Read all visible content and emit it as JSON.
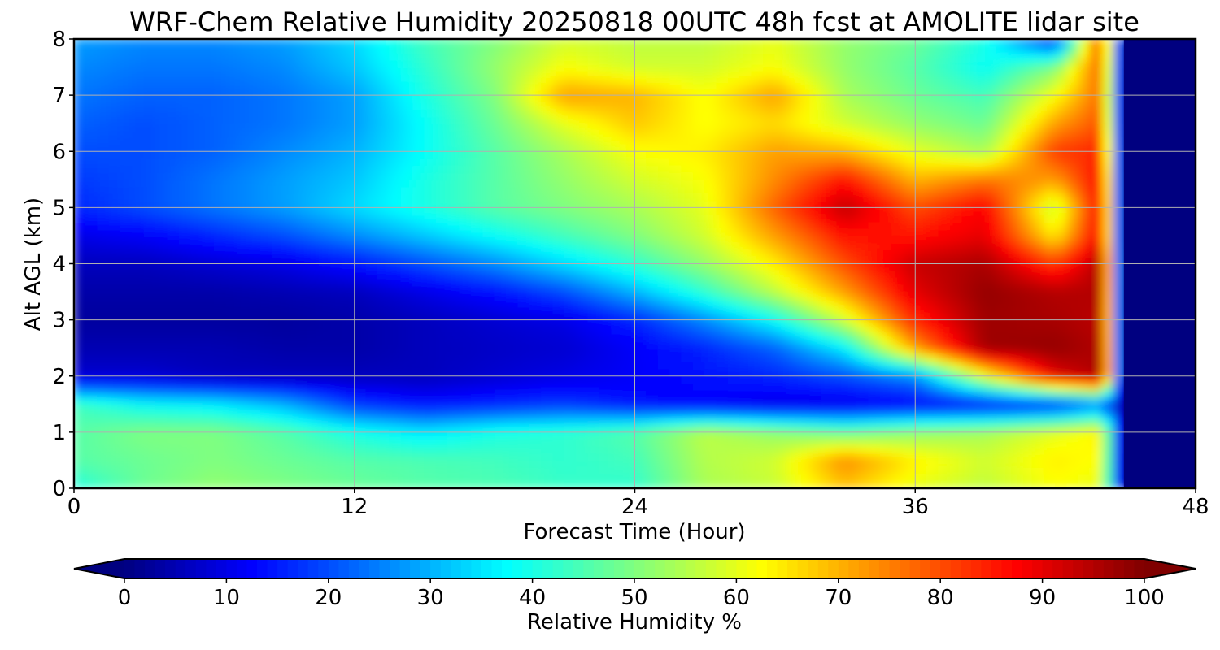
{
  "chart_data": {
    "type": "heatmap",
    "title": "WRF-Chem Relative Humidity 20250818 00UTC 48h fcst at AMOLITE lidar site",
    "xlabel": "Forecast Time (Hour)",
    "ylabel": "Alt AGL (km)",
    "xlim": [
      0,
      48
    ],
    "ylim": [
      0,
      8
    ],
    "xticks": [
      0,
      12,
      24,
      36,
      48
    ],
    "yticks": [
      0,
      1,
      2,
      3,
      4,
      5,
      6,
      7,
      8
    ],
    "grid": true,
    "colormap": "jet",
    "colorbar": {
      "label": "Relative Humidity %",
      "orientation": "horizontal",
      "placement": "bottom",
      "range": [
        0,
        100
      ],
      "extend": "both",
      "ticks": [
        0,
        10,
        20,
        30,
        40,
        50,
        60,
        70,
        80,
        90,
        100
      ]
    },
    "x": [
      0,
      3,
      6,
      9,
      12,
      15,
      18,
      21,
      24,
      27,
      30,
      33,
      36,
      39,
      42,
      44,
      45,
      48
    ],
    "y": [
      0,
      0.5,
      1,
      1.5,
      2,
      2.5,
      3,
      3.5,
      4,
      4.5,
      5,
      5.5,
      6,
      6.5,
      7,
      7.5,
      8
    ],
    "z": [
      [
        40,
        48,
        52,
        50,
        48,
        46,
        45,
        43,
        42,
        54,
        57,
        68,
        60,
        56,
        62,
        60,
        0,
        0
      ],
      [
        46,
        48,
        50,
        48,
        46,
        45,
        44,
        42,
        44,
        55,
        58,
        74,
        64,
        58,
        64,
        62,
        0,
        0
      ],
      [
        46,
        50,
        50,
        46,
        40,
        36,
        40,
        42,
        46,
        56,
        52,
        48,
        52,
        54,
        60,
        64,
        0,
        0
      ],
      [
        44,
        38,
        36,
        30,
        18,
        14,
        16,
        18,
        14,
        12,
        10,
        10,
        12,
        14,
        16,
        24,
        0,
        0
      ],
      [
        8,
        8,
        6,
        6,
        6,
        6,
        8,
        10,
        12,
        14,
        16,
        20,
        26,
        60,
        90,
        96,
        0,
        0
      ],
      [
        5,
        5,
        5,
        4,
        4,
        6,
        7,
        8,
        12,
        16,
        22,
        36,
        72,
        97,
        98,
        95,
        0,
        0
      ],
      [
        3,
        3,
        3,
        3,
        4,
        6,
        8,
        10,
        16,
        26,
        38,
        58,
        84,
        97,
        96,
        94,
        0,
        0
      ],
      [
        4,
        4,
        4,
        5,
        6,
        10,
        14,
        20,
        30,
        42,
        56,
        72,
        90,
        98,
        95,
        95,
        0,
        0
      ],
      [
        6,
        6,
        8,
        10,
        14,
        20,
        26,
        34,
        42,
        52,
        64,
        80,
        93,
        96,
        82,
        96,
        0,
        0
      ],
      [
        10,
        12,
        16,
        20,
        26,
        32,
        38,
        44,
        50,
        58,
        72,
        86,
        86,
        90,
        64,
        90,
        0,
        0
      ],
      [
        16,
        20,
        24,
        28,
        34,
        40,
        46,
        50,
        54,
        60,
        78,
        94,
        80,
        88,
        56,
        90,
        0,
        0
      ],
      [
        18,
        20,
        24,
        28,
        32,
        40,
        46,
        52,
        58,
        62,
        74,
        86,
        70,
        76,
        72,
        88,
        0,
        0
      ],
      [
        20,
        20,
        22,
        26,
        30,
        38,
        46,
        54,
        62,
        64,
        72,
        70,
        60,
        54,
        82,
        84,
        0,
        0
      ],
      [
        22,
        20,
        22,
        24,
        28,
        38,
        48,
        60,
        68,
        62,
        66,
        58,
        52,
        48,
        72,
        80,
        0,
        0
      ],
      [
        24,
        22,
        22,
        24,
        28,
        40,
        50,
        72,
        70,
        62,
        72,
        54,
        48,
        44,
        62,
        78,
        0,
        0
      ],
      [
        26,
        24,
        24,
        26,
        32,
        42,
        52,
        62,
        58,
        58,
        62,
        52,
        46,
        38,
        50,
        80,
        0,
        0
      ],
      [
        28,
        26,
        26,
        28,
        34,
        44,
        50,
        58,
        56,
        56,
        60,
        52,
        48,
        40,
        14,
        84,
        0,
        0
      ]
    ]
  }
}
